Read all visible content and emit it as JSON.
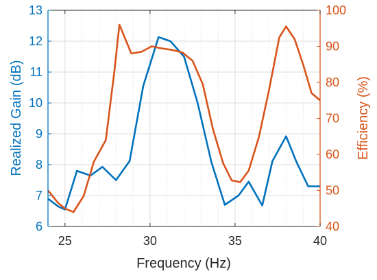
{
  "chart_data": {
    "type": "line",
    "title": "",
    "xlabel": "Frequency (Hz)",
    "ylabel_left": "Realized Gain (dB)",
    "ylabel_right": "Efficiency (%)",
    "xlim": [
      24,
      40
    ],
    "ylim_left": [
      6,
      13
    ],
    "ylim_right": [
      40,
      100
    ],
    "x_ticks": [
      25,
      30,
      35,
      40
    ],
    "y_ticks_left": [
      6,
      7,
      8,
      9,
      10,
      11,
      12,
      13
    ],
    "y_ticks_right": [
      40,
      50,
      60,
      70,
      80,
      90,
      100
    ],
    "grid": true,
    "colors": {
      "gain": "#0072BD",
      "efficiency": "#D95319",
      "grid": "#dcdcdc",
      "axis": "#262626"
    },
    "series": [
      {
        "key": "gain",
        "axis": "left",
        "x": [
          24.0,
          24.6,
          25.0,
          25.7,
          26.5,
          27.2,
          28.0,
          28.8,
          29.6,
          30.5,
          31.2,
          32.0,
          32.8,
          33.6,
          34.4,
          35.2,
          35.8,
          36.6,
          37.2,
          38.0,
          38.6,
          39.3,
          40.0
        ],
        "y": [
          6.9,
          6.65,
          6.55,
          7.8,
          7.65,
          7.93,
          7.5,
          8.12,
          10.55,
          12.13,
          12.0,
          11.5,
          10.0,
          8.1,
          6.7,
          7.0,
          7.45,
          6.68,
          8.12,
          8.92,
          8.1,
          7.3,
          7.3
        ]
      },
      {
        "key": "efficiency",
        "axis": "right",
        "x": [
          24.0,
          24.6,
          25.0,
          25.5,
          26.1,
          26.7,
          27.4,
          27.9,
          28.2,
          28.9,
          29.5,
          30.1,
          30.6,
          31.3,
          31.9,
          32.5,
          33.1,
          33.7,
          34.3,
          34.8,
          35.3,
          35.8,
          36.4,
          37.0,
          37.6,
          38.0,
          38.5,
          39.0,
          39.5,
          40.0
        ],
        "y": [
          50.0,
          46.5,
          45.0,
          44.0,
          48.5,
          58.0,
          64.0,
          83.0,
          96.0,
          88.0,
          88.5,
          90.0,
          89.5,
          89.0,
          88.3,
          86.0,
          79.5,
          67.0,
          57.5,
          52.8,
          52.3,
          55.5,
          64.8,
          78.0,
          92.5,
          95.5,
          92.0,
          85.0,
          77.0,
          75.0
        ]
      }
    ]
  }
}
